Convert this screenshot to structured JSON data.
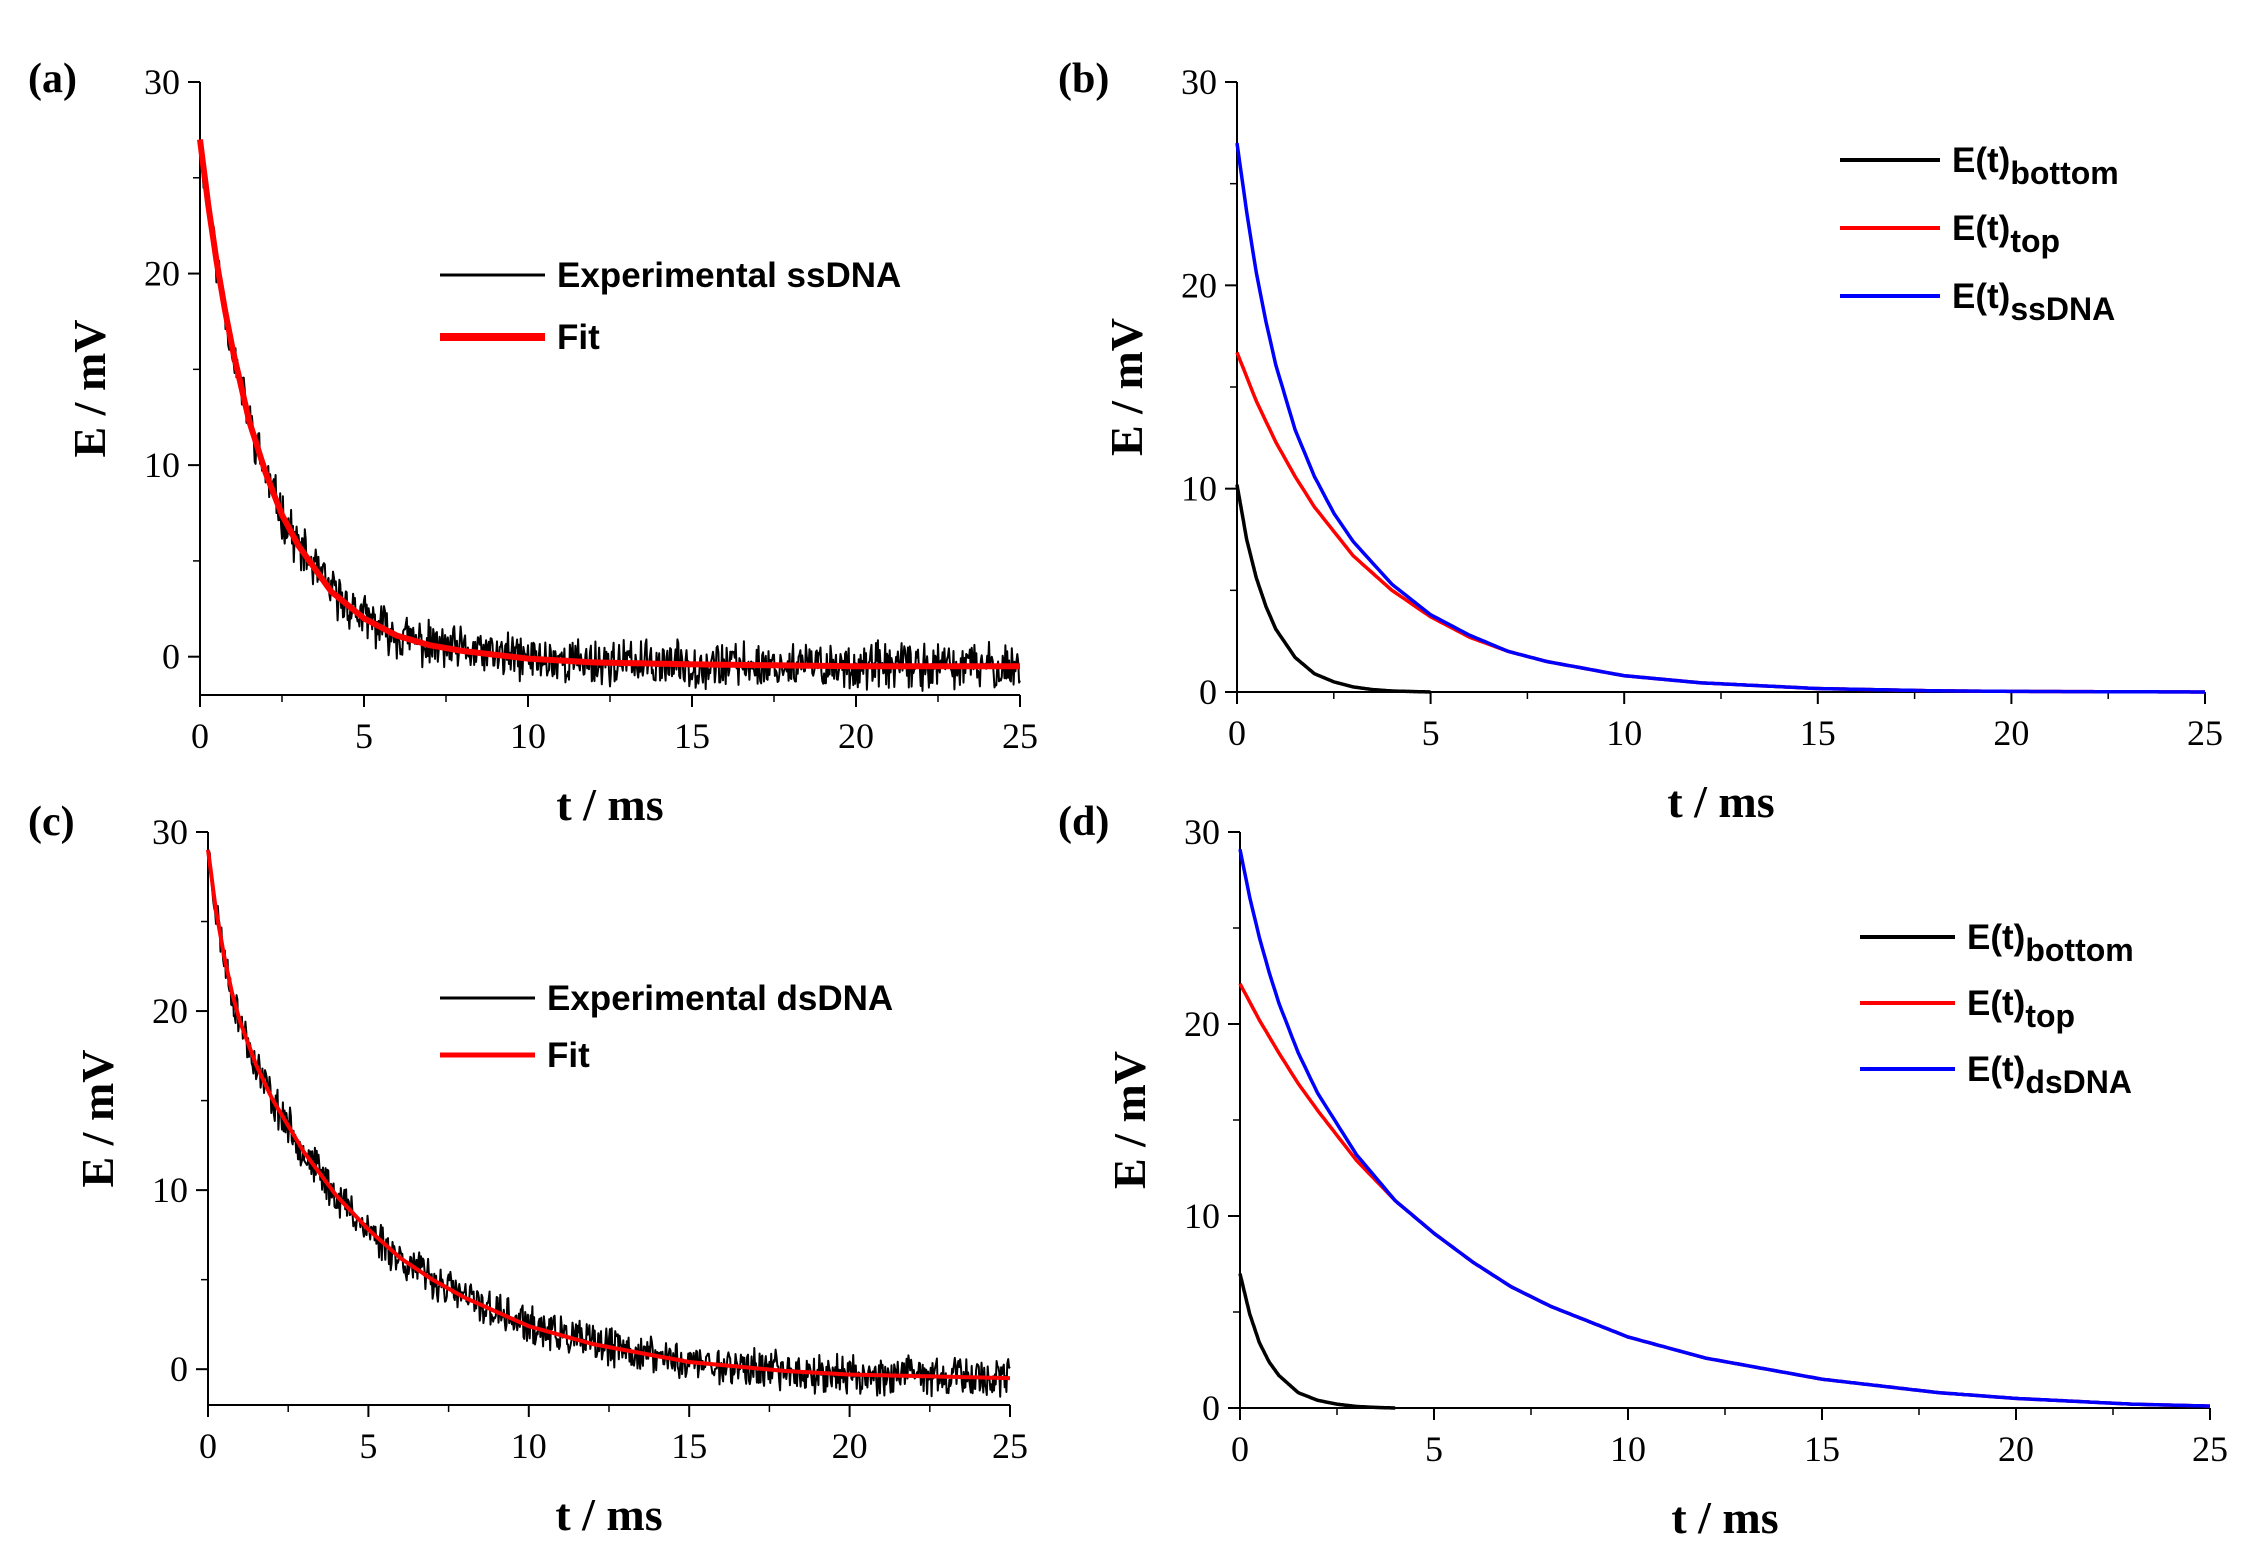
{
  "chart_data": [
    {
      "panel": "(a)",
      "type": "line",
      "xlabel": "t / ms",
      "ylabel": "E / mV",
      "xlim": [
        0,
        25
      ],
      "ylim": [
        -2,
        30
      ],
      "xticks": [
        "0",
        "5",
        "10",
        "15",
        "20",
        "25"
      ],
      "yticks": [
        "0",
        "10",
        "20",
        "30"
      ],
      "legend_position": "top-center",
      "series": [
        {
          "name": "Experimental ssDNA",
          "color": "#000000",
          "noisy": true,
          "t": [
            0,
            0.25,
            0.5,
            0.75,
            1,
            1.5,
            2,
            2.5,
            3,
            4,
            5,
            6,
            7,
            8,
            9,
            10,
            12,
            15,
            20,
            25
          ],
          "E": [
            27,
            23.6,
            20.7,
            18.2,
            16.0,
            12.3,
            9.6,
            7.4,
            5.8,
            3.4,
            2.0,
            1.1,
            0.6,
            0.3,
            0.1,
            -0.1,
            -0.3,
            -0.4,
            -0.5,
            -0.5
          ]
        },
        {
          "name": "Fit",
          "color": "#ff0000",
          "t": [
            0,
            0.25,
            0.5,
            0.75,
            1,
            1.5,
            2,
            2.5,
            3,
            4,
            5,
            6,
            7,
            8,
            9,
            10,
            12,
            15,
            20,
            25
          ],
          "E": [
            27,
            23.6,
            20.7,
            18.2,
            16.0,
            12.3,
            9.6,
            7.4,
            5.8,
            3.4,
            2.0,
            1.1,
            0.6,
            0.3,
            0.1,
            -0.1,
            -0.3,
            -0.4,
            -0.5,
            -0.5
          ]
        }
      ]
    },
    {
      "panel": "(b)",
      "type": "line",
      "xlabel": "t / ms",
      "ylabel": "E / mV",
      "xlim": [
        0,
        25
      ],
      "ylim": [
        0,
        30
      ],
      "xticks": [
        "0",
        "5",
        "10",
        "15",
        "20",
        "25"
      ],
      "yticks": [
        "0",
        "10",
        "20",
        "30"
      ],
      "legend_position": "top-right",
      "series": [
        {
          "name": "E(t)",
          "subscript": "bottom",
          "color": "#000000",
          "t": [
            0,
            0.25,
            0.5,
            0.75,
            1,
            1.5,
            2,
            2.5,
            3,
            3.5,
            4,
            5
          ],
          "E": [
            10.2,
            7.5,
            5.6,
            4.2,
            3.1,
            1.7,
            0.9,
            0.5,
            0.25,
            0.12,
            0.05,
            0.0
          ]
        },
        {
          "name": "E(t)",
          "subscript": "top",
          "color": "#ff0000",
          "t": [
            0,
            0.5,
            1,
            1.5,
            2,
            3,
            4,
            5,
            6,
            7,
            8,
            10,
            12,
            15,
            18,
            20,
            25
          ],
          "E": [
            16.7,
            14.3,
            12.3,
            10.6,
            9.1,
            6.7,
            5.0,
            3.7,
            2.7,
            2.0,
            1.5,
            0.8,
            0.45,
            0.17,
            0.06,
            0.03,
            0.0
          ]
        },
        {
          "name": "E(t)",
          "subscript": "ssDNA",
          "color": "#0000ff",
          "t": [
            0,
            0.25,
            0.5,
            0.75,
            1,
            1.5,
            2,
            2.5,
            3,
            4,
            5,
            6,
            7,
            8,
            10,
            12,
            15,
            18,
            20,
            25
          ],
          "E": [
            27.0,
            23.6,
            20.6,
            18.2,
            16.1,
            12.9,
            10.6,
            8.8,
            7.4,
            5.3,
            3.8,
            2.8,
            2.0,
            1.5,
            0.8,
            0.45,
            0.17,
            0.06,
            0.03,
            0.0
          ]
        }
      ]
    },
    {
      "panel": "(c)",
      "type": "line",
      "xlabel": "t / ms",
      "ylabel": "E / mV",
      "xlim": [
        0,
        25
      ],
      "ylim": [
        -2,
        30
      ],
      "xticks": [
        "0",
        "5",
        "10",
        "15",
        "20",
        "25"
      ],
      "yticks": [
        "0",
        "10",
        "20",
        "30"
      ],
      "legend_position": "top-center",
      "series": [
        {
          "name": "Experimental dsDNA",
          "color": "#000000",
          "noisy": true,
          "t": [
            0,
            0.25,
            0.5,
            0.75,
            1,
            1.5,
            2,
            3,
            4,
            5,
            6,
            7,
            8,
            10,
            12,
            15,
            18,
            20,
            25
          ],
          "E": [
            29,
            25.6,
            23.1,
            21.0,
            19.4,
            17.0,
            15.1,
            12.1,
            9.7,
            7.8,
            6.2,
            5.0,
            4.0,
            2.4,
            1.4,
            0.4,
            -0.1,
            -0.3,
            -0.5
          ]
        },
        {
          "name": "Fit",
          "color": "#ff0000",
          "t": [
            0,
            0.25,
            0.5,
            0.75,
            1,
            1.5,
            2,
            3,
            4,
            5,
            6,
            7,
            8,
            10,
            12,
            15,
            18,
            20,
            25
          ],
          "E": [
            29,
            25.6,
            23.1,
            21.0,
            19.4,
            17.0,
            15.1,
            12.1,
            9.7,
            7.8,
            6.2,
            5.0,
            4.0,
            2.4,
            1.4,
            0.4,
            -0.1,
            -0.3,
            -0.5
          ]
        }
      ]
    },
    {
      "panel": "(d)",
      "type": "line",
      "xlabel": "t / ms",
      "ylabel": "E / mV",
      "xlim": [
        0,
        25
      ],
      "ylim": [
        0,
        30
      ],
      "xticks": [
        "0",
        "5",
        "10",
        "15",
        "20",
        "25"
      ],
      "yticks": [
        "0",
        "10",
        "20",
        "30"
      ],
      "legend_position": "top-right",
      "series": [
        {
          "name": "E(t)",
          "subscript": "bottom",
          "color": "#000000",
          "t": [
            0,
            0.25,
            0.5,
            0.75,
            1,
            1.5,
            2,
            2.5,
            3,
            3.5,
            4
          ],
          "E": [
            7.0,
            4.9,
            3.4,
            2.4,
            1.7,
            0.8,
            0.4,
            0.2,
            0.08,
            0.03,
            0.0
          ]
        },
        {
          "name": "E(t)",
          "subscript": "top",
          "color": "#ff0000",
          "t": [
            0,
            0.5,
            1,
            1.5,
            2,
            3,
            4,
            5,
            6,
            7,
            8,
            10,
            12,
            15,
            18,
            20,
            23,
            25
          ],
          "E": [
            22.1,
            20.2,
            18.5,
            16.9,
            15.5,
            12.9,
            10.8,
            9.1,
            7.6,
            6.3,
            5.3,
            3.7,
            2.6,
            1.5,
            0.8,
            0.5,
            0.2,
            0.1
          ]
        },
        {
          "name": "E(t)",
          "subscript": "dsDNA",
          "color": "#0000ff",
          "t": [
            0,
            0.25,
            0.5,
            0.75,
            1,
            1.5,
            2,
            3,
            4,
            5,
            6,
            7,
            8,
            10,
            12,
            15,
            18,
            20,
            23,
            25
          ],
          "E": [
            29.1,
            26.6,
            24.5,
            22.7,
            21.1,
            18.5,
            16.4,
            13.2,
            10.8,
            9.1,
            7.6,
            6.3,
            5.3,
            3.7,
            2.6,
            1.5,
            0.8,
            0.5,
            0.2,
            0.1
          ]
        }
      ]
    }
  ]
}
